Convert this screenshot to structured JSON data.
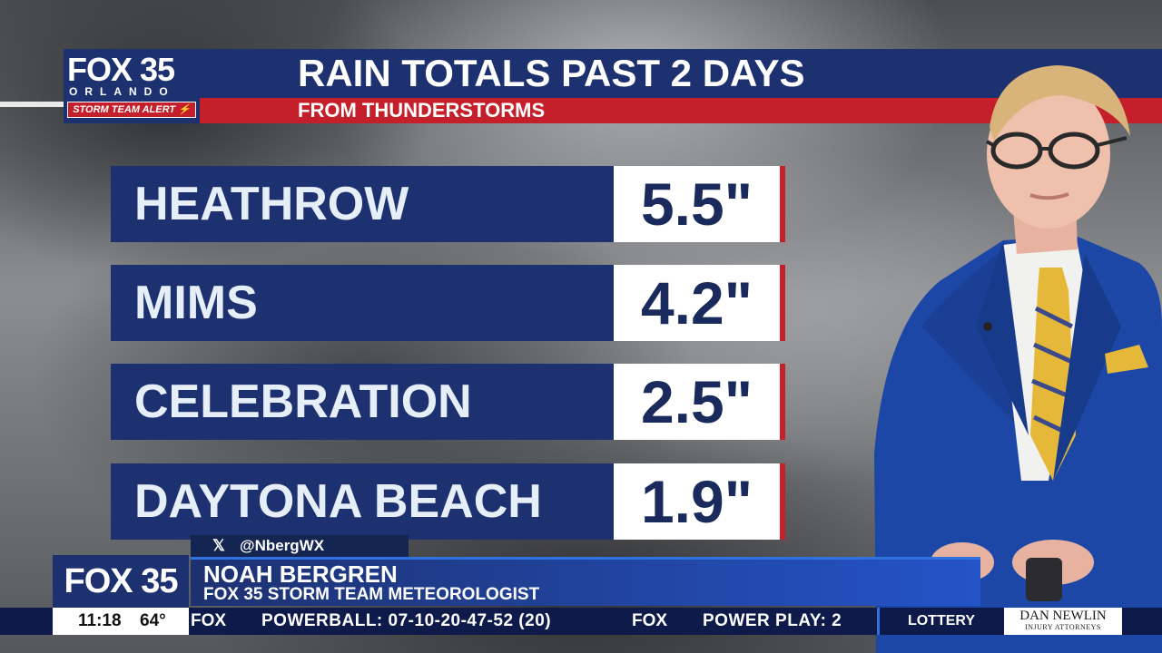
{
  "header": {
    "logo": {
      "brand": "FOX 35",
      "city": "ORLANDO",
      "alert": "STORM TEAM ALERT"
    },
    "title": "RAIN TOTALS PAST 2 DAYS",
    "subtitle": "FROM THUNDERSTORMS"
  },
  "rain_totals": [
    {
      "location": "HEATHROW",
      "amount": "5.5\""
    },
    {
      "location": "MIMS",
      "amount": "4.2\""
    },
    {
      "location": "CELEBRATION",
      "amount": "2.5\""
    },
    {
      "location": "DAYTONA BEACH",
      "amount": "1.9\""
    }
  ],
  "lower_third": {
    "handle": "@NbergWX",
    "logo": "FOX 35",
    "name": "NOAH BERGREN",
    "role": "FOX 35 STORM TEAM METEOROLOGIST"
  },
  "ticker": {
    "time": "11:18",
    "temp": "64°",
    "fox1": "FOX",
    "item1": "POWERBALL: 07-10-20-47-52 (20)",
    "fox2": "FOX",
    "item2": "POWER PLAY: 2",
    "lottery": "LOTTERY",
    "sponsor_name": "DAN NEWLIN",
    "sponsor_sub": "INJURY ATTORNEYS"
  },
  "colors": {
    "navy": "#1d3170",
    "red": "#c41f2a",
    "value_text": "#1a2a5c",
    "accent_blue": "#2454c8"
  }
}
